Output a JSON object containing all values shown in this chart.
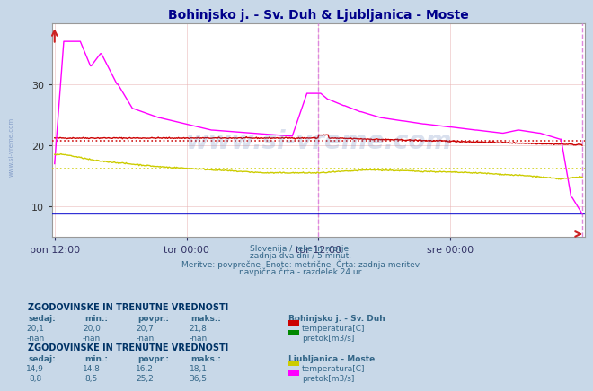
{
  "title": "Bohinjsko j. - Sv. Duh & Ljubljanica - Moste",
  "title_color": "#00008b",
  "bg_color": "#c8d8e8",
  "plot_bg_color": "#ffffff",
  "grid_color": "#e8b0b0",
  "grid_color2": "#d0d0d0",
  "xlabel_ticks": [
    "pon 12:00",
    "tor 00:00",
    "tor 12:00",
    "sre 00:00"
  ],
  "xlabel_tick_pos": [
    0.0,
    0.25,
    0.5,
    0.75
  ],
  "ylim": [
    5,
    40
  ],
  "yticks": [
    10,
    20,
    30
  ],
  "n_points": 576,
  "watermark_text": "www.si-vreme.com",
  "subtitle_lines": [
    "Slovenija / reke in morje.",
    "zadnja dva dni / 5 minut.",
    "Meritve: povprečne  Enote: metrične  Črta: zadnja meritev",
    "navpična črta - razdelek 24 ur"
  ],
  "stat_block1_title": "ZGODOVINSKE IN TRENUTNE VREDNOSTI",
  "stat_block1_station": "Bohinjsko j. - Sv. Duh",
  "stat_block1_headers": [
    "sedaj:",
    "min.:",
    "povpr.:",
    "maks.:"
  ],
  "stat_block1_row1": [
    "20,1",
    "20,0",
    "20,7",
    "21,8"
  ],
  "stat_block1_row2": [
    "-nan",
    "-nan",
    "-nan",
    "-nan"
  ],
  "stat_block1_color1": "#cc0000",
  "stat_block1_label1": "temperatura[C]",
  "stat_block1_color2": "#008800",
  "stat_block1_label2": "pretok[m3/s]",
  "stat_block2_title": "ZGODOVINSKE IN TRENUTNE VREDNOSTI",
  "stat_block2_station": "Ljubljanica - Moste",
  "stat_block2_headers": [
    "sedaj:",
    "min.:",
    "povpr.:",
    "maks.:"
  ],
  "stat_block2_row1": [
    "14,9",
    "14,8",
    "16,2",
    "18,1"
  ],
  "stat_block2_row2": [
    "8,8",
    "8,5",
    "25,2",
    "36,5"
  ],
  "stat_block2_color1": "#cccc00",
  "stat_block2_label1": "temperatura[C]",
  "stat_block2_color2": "#ff00ff",
  "stat_block2_label2": "pretok[m3/s]",
  "line_boh_temp_avg": 20.7,
  "line_boh_temp_color": "#cc0000",
  "line_lj_temp_avg": 16.2,
  "line_lj_temp_color": "#cccc00",
  "line_lj_flow_color": "#ff00ff",
  "vline_color": "#dd88dd",
  "blue_line_y": 8.8,
  "blue_line_color": "#0000cc"
}
